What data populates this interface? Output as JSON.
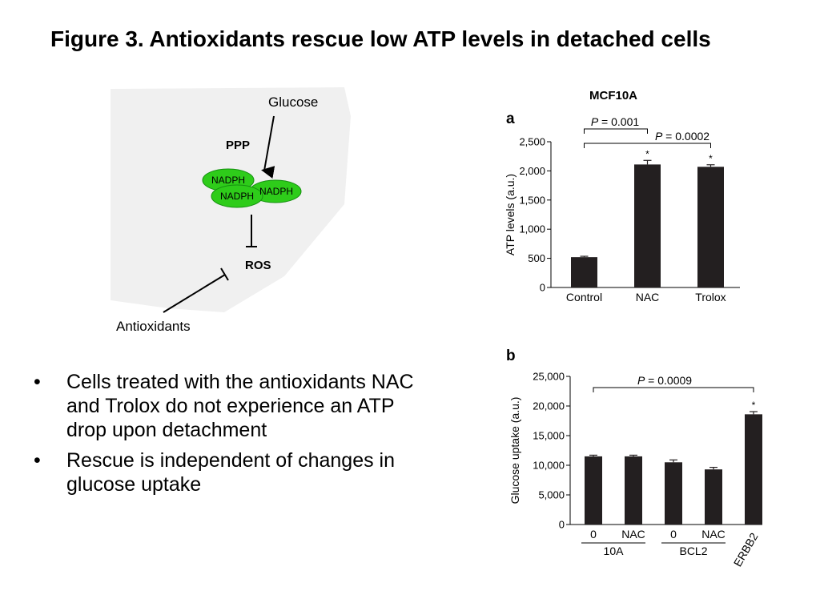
{
  "slide": {
    "title": "Figure 3. Antioxidants rescue low ATP levels in detached cells",
    "panel_header": "MCF10A",
    "bullet_glyph": "•",
    "bullets": [
      "Cells treated with the antioxidants NAC and Trolox do not experience an ATP drop upon detachment",
      "Rescue is independent of changes in glucose uptake"
    ]
  },
  "diagram": {
    "glucose": "Glucose",
    "ppp": "PPP",
    "nadph_1": "NADPH",
    "nadph_2": "NADPH",
    "nadph_3": "NADPH",
    "ros": "ROS",
    "antioxidants": "Antioxidants",
    "colors": {
      "nadph_fill": "#2ecc1a",
      "background": "#f0f0f0"
    }
  },
  "chart_data": [
    {
      "panel": "a",
      "type": "bar",
      "categories": [
        "Control",
        "NAC",
        "Trolox"
      ],
      "values": [
        520,
        2110,
        2070
      ],
      "errors": [
        15,
        70,
        35
      ],
      "significance": [
        "",
        "*",
        "*"
      ],
      "ylabel": "ATP levels (a.u.)",
      "ylim": [
        0,
        2500
      ],
      "yticks": [
        0,
        500,
        1000,
        1500,
        2000,
        2500
      ],
      "ytick_labels": [
        "0",
        "500",
        "1,000",
        "1,500",
        "2,000",
        "2,500"
      ],
      "annotations": [
        {
          "text": "P = 0.001",
          "from": 0,
          "to": 1
        },
        {
          "text": "P = 0.0002",
          "from": 0,
          "to": 2
        }
      ],
      "colors": {
        "bar": "#231f20"
      }
    },
    {
      "panel": "b",
      "type": "bar",
      "categories": [
        "0",
        "NAC",
        "0",
        "NAC",
        "ERBB2"
      ],
      "groups": [
        {
          "label": "10A",
          "from": 0,
          "to": 1
        },
        {
          "label": "BCL2",
          "from": 2,
          "to": 3
        }
      ],
      "values": [
        11500,
        11500,
        10500,
        9300,
        18600
      ],
      "errors": [
        200,
        200,
        400,
        350,
        450
      ],
      "significance": [
        "",
        "",
        "",
        "",
        "*"
      ],
      "ylabel": "Glucose uptake (a.u.)",
      "ylim": [
        0,
        25000
      ],
      "yticks": [
        0,
        5000,
        10000,
        15000,
        20000,
        25000
      ],
      "ytick_labels": [
        "0",
        "5,000",
        "10,000",
        "15,000",
        "20,000",
        "25,000"
      ],
      "annotations": [
        {
          "text": "P = 0.0009",
          "from": 0,
          "to": 4
        }
      ],
      "colors": {
        "bar": "#231f20"
      }
    }
  ]
}
